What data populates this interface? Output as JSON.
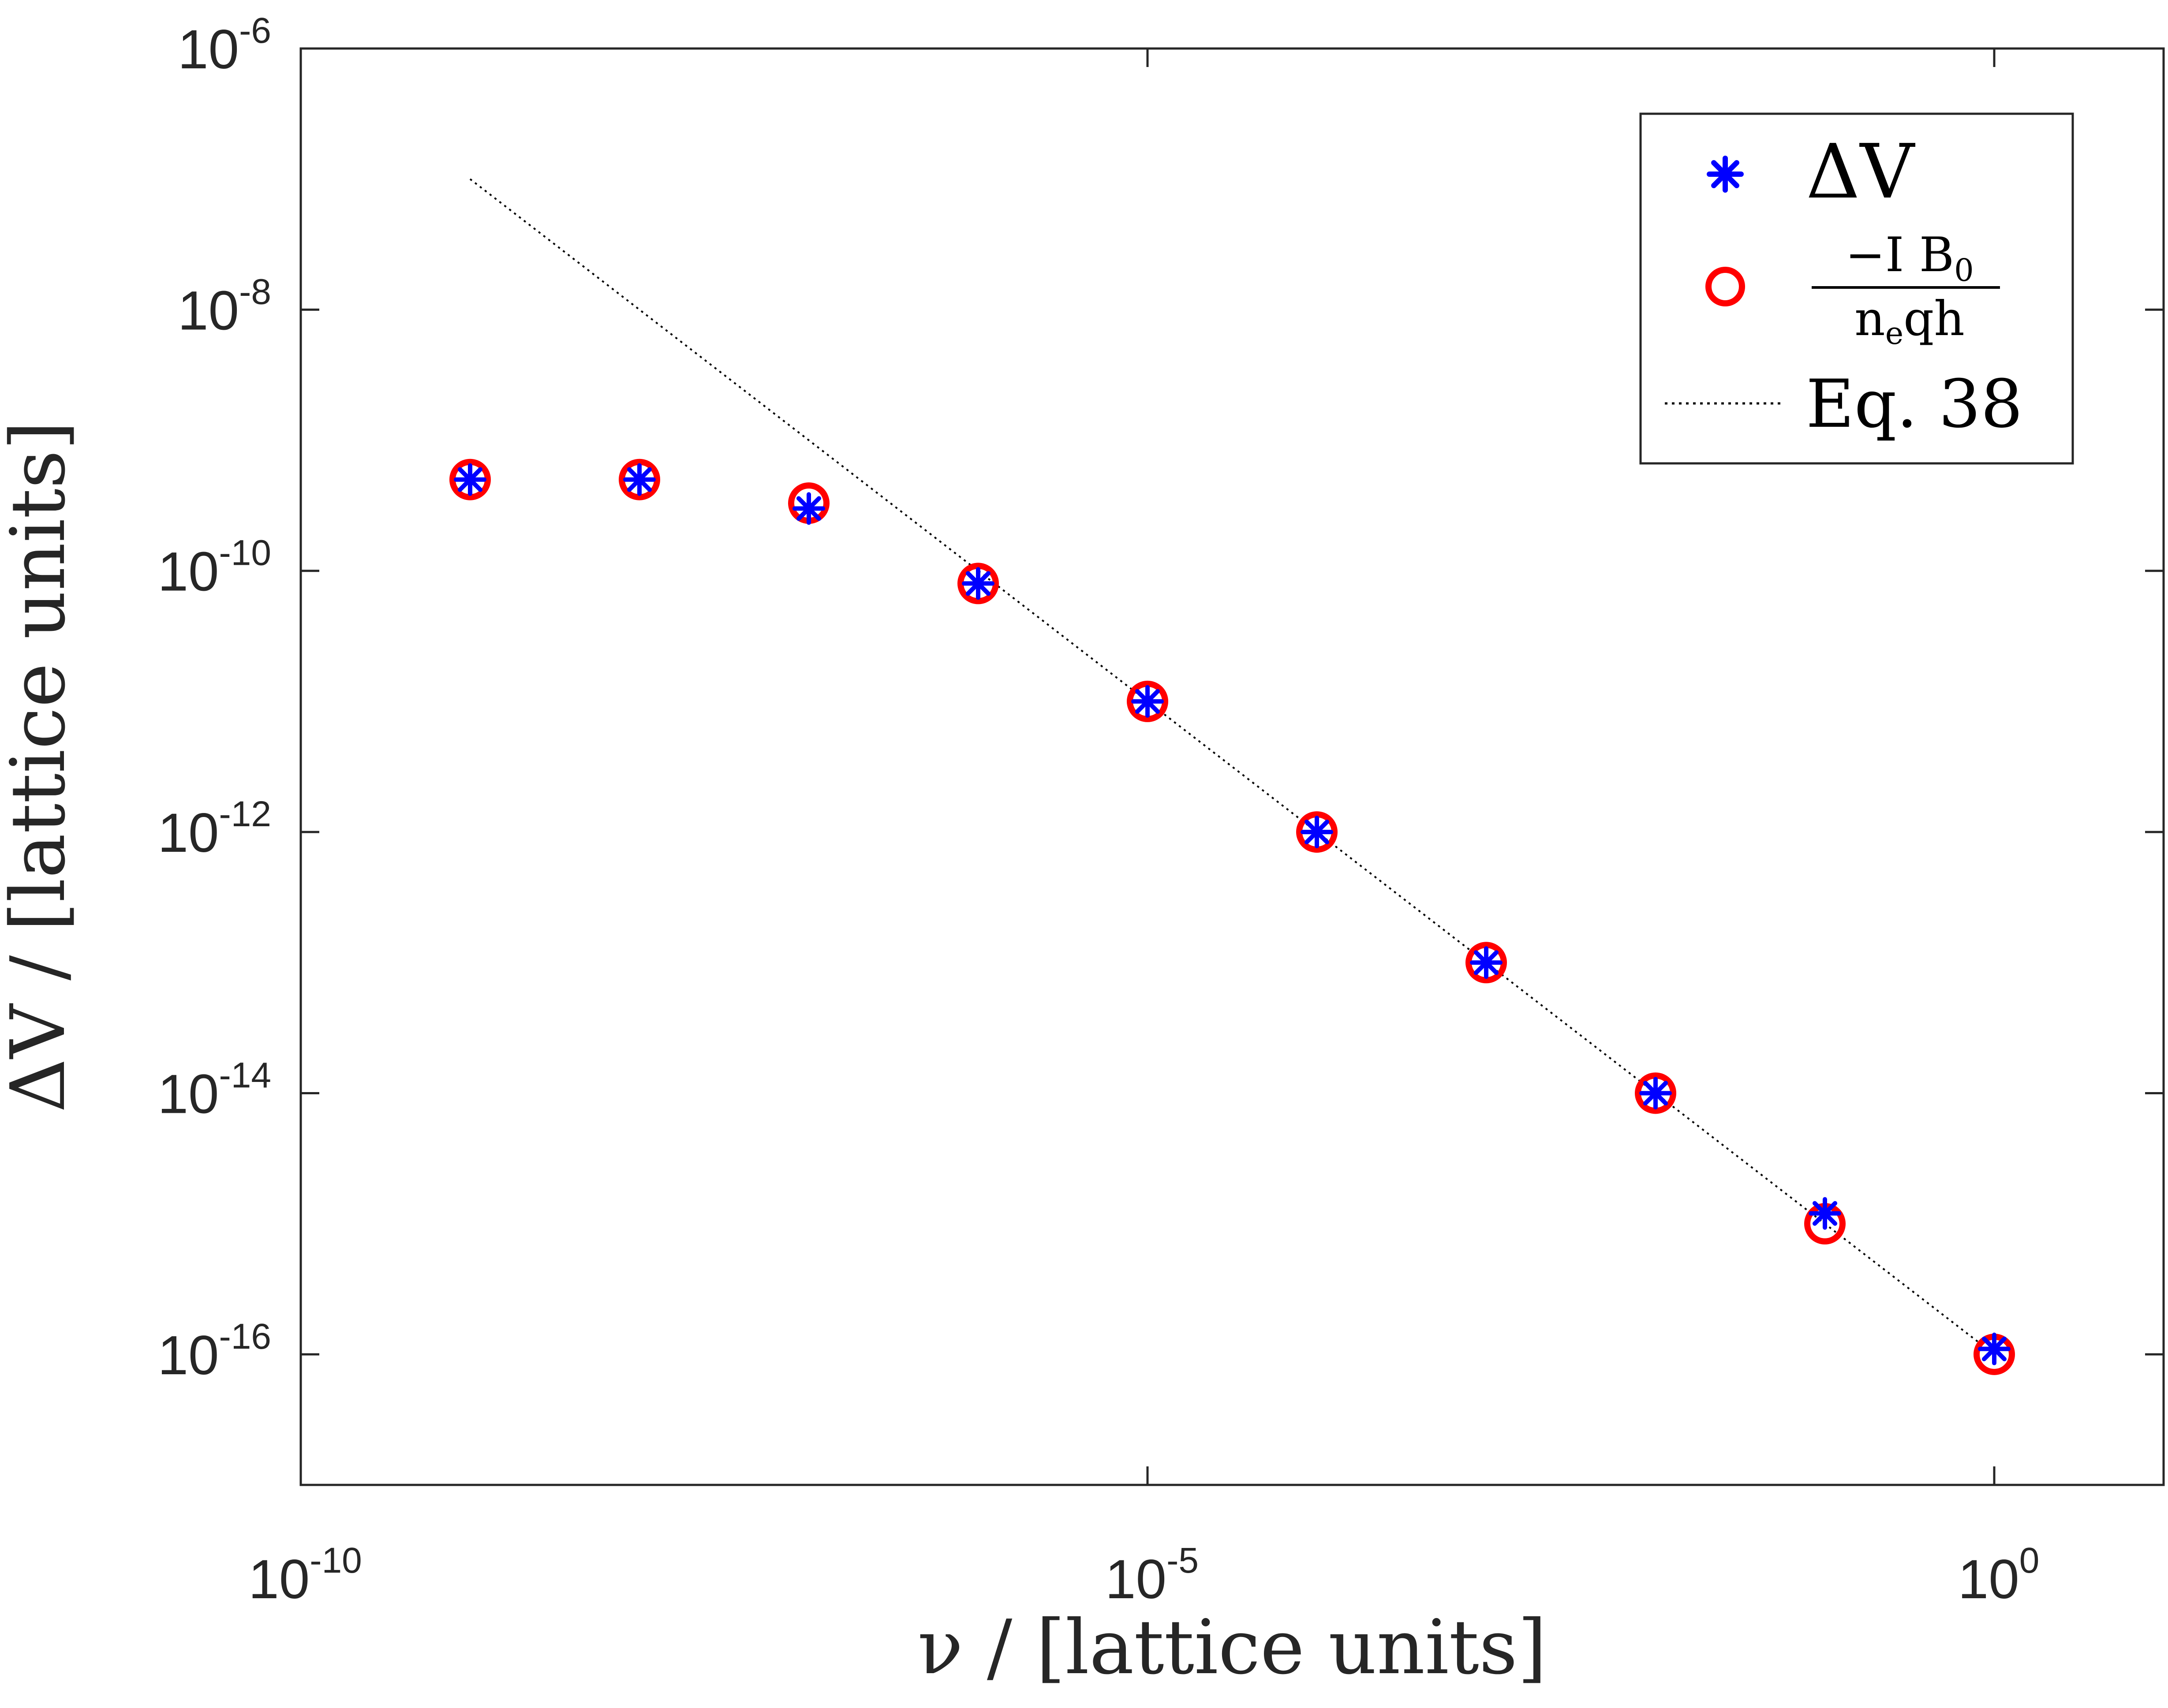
{
  "chart_data": {
    "type": "scatter",
    "xscale": "log",
    "yscale": "log",
    "xlim": [
      1e-10,
      10
    ],
    "ylim": [
      1e-17,
      1e-06
    ],
    "xlabel": "ν / [lattice units]",
    "ylabel": "ΔV / [lattice units]",
    "x_ticks": [
      {
        "value": 1e-10,
        "base": "10",
        "exp": "-10"
      },
      {
        "value": 1e-05,
        "base": "10",
        "exp": "-5"
      },
      {
        "value": 1,
        "base": "10",
        "exp": "0"
      }
    ],
    "y_ticks": [
      {
        "value": 1e-06,
        "base": "10",
        "exp": "-6"
      },
      {
        "value": 1e-08,
        "base": "10",
        "exp": "-8"
      },
      {
        "value": 1e-10,
        "base": "10",
        "exp": "-10"
      },
      {
        "value": 1e-12,
        "base": "10",
        "exp": "-12"
      },
      {
        "value": 1e-14,
        "base": "10",
        "exp": "-14"
      },
      {
        "value": 1e-16,
        "base": "10",
        "exp": "-16"
      }
    ],
    "series": [
      {
        "name": "ΔV",
        "marker": "asterisk",
        "color": "#0000ff",
        "x": [
          1e-09,
          1e-08,
          1e-07,
          1e-06,
          1e-05,
          0.0001,
          0.001,
          0.01,
          0.1,
          1
        ],
        "y": [
          5e-10,
          5e-10,
          3e-10,
          8e-11,
          1e-11,
          1e-12,
          1e-13,
          1e-14,
          1.2e-15,
          1.1e-16
        ]
      },
      {
        "name": "−I B0 / (n_e q h)",
        "marker": "circle",
        "color": "#ff0000",
        "x": [
          1e-09,
          1e-08,
          1e-07,
          1e-06,
          1e-05,
          0.0001,
          0.001,
          0.01,
          0.1,
          1
        ],
        "y": [
          5e-10,
          5e-10,
          3.3e-10,
          8e-11,
          1e-11,
          1e-12,
          1e-13,
          1e-14,
          1e-15,
          1e-16
        ]
      },
      {
        "name": "Eq. 38",
        "marker": "line-dotted",
        "color": "#000000",
        "x": [
          1e-09,
          1
        ],
        "y": [
          1e-07,
          1e-16
        ]
      }
    ],
    "legend": {
      "placement": "top-right",
      "entries": [
        {
          "label": "ΔV"
        },
        {
          "label_numerator": "−I B",
          "label_numerator_sub": "0",
          "label_denominator": "n",
          "label_denominator_sub": "e",
          "label_denominator_rest": "qh"
        },
        {
          "label": "Eq. 38"
        }
      ]
    }
  }
}
